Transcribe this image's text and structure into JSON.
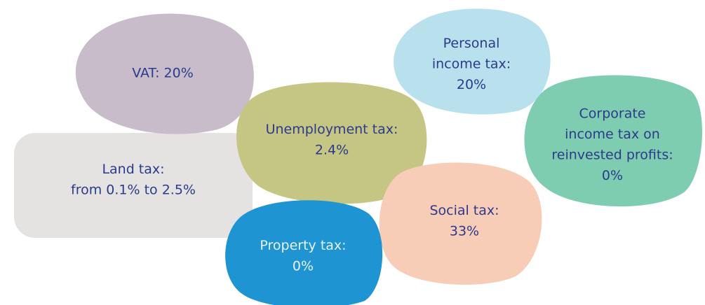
{
  "nodes": [
    {
      "lines": [
        "Land tax:",
        "from 0.1% to 2.5%"
      ]
    },
    {
      "lines": [
        "VAT: 20%"
      ]
    },
    {
      "lines": [
        "Personal",
        "income tax:",
        "20%"
      ]
    },
    {
      "lines": [
        "Unemployment tax:",
        "2.4%"
      ]
    },
    {
      "lines": [
        "Corporate",
        "income tax on",
        "reinvested profits:",
        "0%"
      ]
    },
    {
      "lines": [
        "Social tax:",
        "33%"
      ]
    },
    {
      "lines": [
        "Property tax:",
        "0%"
      ]
    }
  ]
}
